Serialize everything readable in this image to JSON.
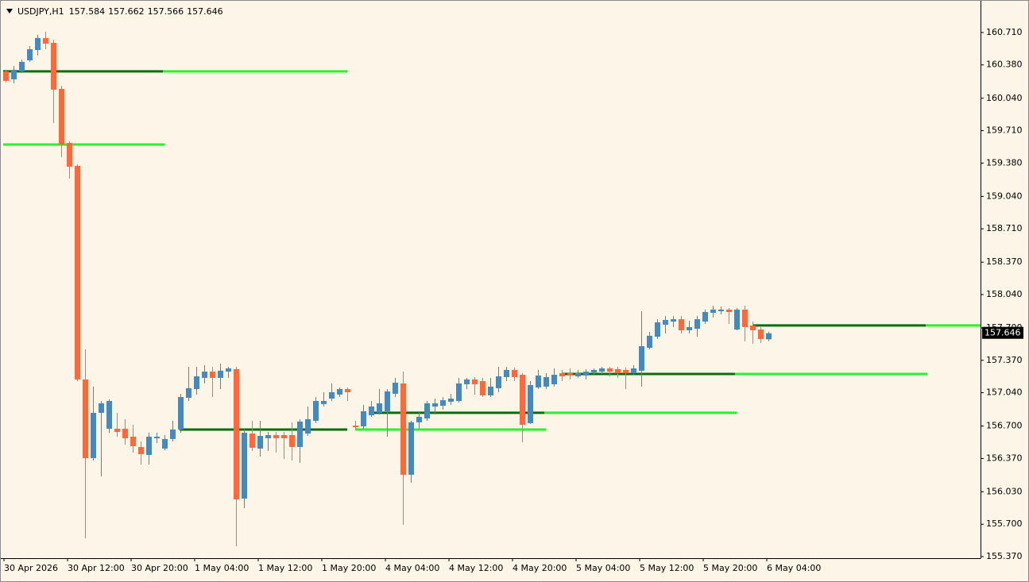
{
  "chart_data": {
    "type": "candlestick",
    "symbol": "USDJPY,H1",
    "categories": [
      "30 Apr 2026",
      null,
      null,
      null,
      null,
      null,
      null,
      null,
      "30 Apr 12:00",
      null,
      null,
      null,
      null,
      null,
      null,
      null,
      "30 Apr 20:00",
      null,
      null,
      null,
      null,
      null,
      null,
      null,
      "1 May 04:00",
      null,
      null,
      null,
      null,
      null,
      null,
      null,
      "1 May 12:00",
      null,
      null,
      null,
      null,
      null,
      null,
      null,
      "1 May 20:00",
      null,
      null,
      null,
      null,
      null,
      null,
      null,
      "4 May 04:00",
      null,
      null,
      null,
      null,
      null,
      null,
      null,
      "4 May 12:00",
      null,
      null,
      null,
      null,
      null,
      null,
      null,
      "4 May 20:00",
      null,
      null,
      null,
      null,
      null,
      null,
      null,
      "5 May 04:00",
      null,
      null,
      null,
      null,
      null,
      null,
      null,
      "5 May 12:00",
      null,
      null,
      null,
      null,
      null,
      null,
      null,
      "5 May 20:00",
      null,
      null,
      null,
      null,
      null,
      null,
      null,
      "6 May 04:00"
    ],
    "open": [
      160.314,
      160.233,
      160.314,
      160.427,
      160.532,
      160.654,
      160.605,
      160.136,
      159.586,
      159.351,
      157.175,
      156.373,
      156.835,
      156.673,
      156.673,
      156.673,
      156.592,
      156.487,
      156.406,
      156.576,
      156.471,
      156.568,
      156.665,
      156.988,
      157.077,
      157.191,
      157.255,
      157.191,
      157.255,
      157.28,
      155.961,
      156.624,
      156.471,
      156.576,
      156.608,
      156.608,
      156.608,
      156.487,
      156.624,
      156.754,
      156.924,
      156.98,
      157.021,
      157.077,
      156.705,
      156.697,
      156.81,
      156.835,
      156.851,
      157.029,
      157.134,
      156.204,
      156.738,
      156.778,
      156.899,
      156.907,
      156.948,
      156.956,
      157.126,
      157.175,
      157.158,
      157.013,
      157.086,
      157.199,
      157.272,
      157.223,
      156.73,
      157.094,
      157.102,
      157.126,
      157.239,
      157.239,
      157.207,
      157.215,
      157.247,
      157.255,
      157.288,
      157.28,
      157.272,
      157.239,
      157.264,
      157.498,
      157.611,
      157.733,
      157.765,
      157.789,
      157.676,
      157.692,
      157.765,
      157.854,
      157.87,
      157.887,
      157.684,
      157.887,
      157.725,
      157.684,
      157.584
    ],
    "high": [
      160.33,
      160.37,
      160.435,
      160.573,
      160.686,
      160.718,
      160.637,
      160.168,
      159.602,
      159.367,
      157.482,
      157.102,
      156.956,
      156.972,
      156.835,
      156.77,
      156.713,
      156.543,
      156.632,
      156.632,
      156.608,
      156.754,
      157.029,
      157.304,
      157.304,
      157.32,
      157.304,
      157.336,
      157.304,
      157.304,
      156.673,
      156.754,
      156.754,
      156.64,
      156.64,
      156.64,
      156.738,
      156.77,
      156.899,
      156.996,
      157.045,
      157.134,
      157.094,
      157.094,
      156.754,
      156.916,
      156.956,
      157.077,
      157.077,
      157.191,
      157.255,
      156.754,
      156.851,
      156.956,
      156.98,
      156.996,
      157.029,
      157.191,
      157.191,
      157.199,
      157.191,
      157.191,
      157.304,
      157.304,
      157.296,
      157.239,
      157.158,
      157.272,
      157.239,
      157.288,
      157.272,
      157.288,
      157.272,
      157.28,
      157.288,
      157.304,
      157.304,
      157.304,
      157.296,
      157.32,
      157.87,
      157.66,
      157.789,
      157.822,
      157.822,
      157.822,
      157.773,
      157.822,
      157.887,
      157.927,
      157.919,
      157.903,
      157.903,
      157.927,
      157.765,
      157.709,
      157.662
    ],
    "low": [
      160.201,
      160.192,
      160.298,
      160.411,
      160.476,
      160.54,
      159.788,
      159.44,
      159.222,
      157.158,
      155.556,
      156.349,
      156.187,
      156.632,
      156.592,
      156.511,
      156.43,
      156.309,
      156.309,
      156.527,
      156.454,
      156.543,
      156.632,
      156.956,
      157.021,
      157.134,
      156.996,
      157.077,
      157.191,
      155.475,
      155.864,
      156.446,
      156.39,
      156.446,
      156.43,
      156.365,
      156.349,
      156.325,
      156.6,
      156.73,
      156.899,
      156.956,
      156.996,
      156.956,
      156.657,
      156.673,
      156.794,
      156.818,
      156.592,
      156.996,
      155.694,
      156.123,
      156.673,
      156.754,
      156.818,
      156.867,
      156.916,
      156.94,
      157.077,
      157.021,
      156.996,
      156.996,
      157.045,
      157.158,
      157.158,
      156.535,
      156.721,
      157.077,
      157.077,
      157.102,
      157.158,
      157.175,
      157.191,
      157.175,
      157.223,
      157.231,
      157.207,
      157.191,
      157.077,
      157.223,
      157.102,
      157.482,
      157.587,
      157.644,
      157.709,
      157.644,
      157.644,
      157.611,
      157.741,
      157.806,
      157.838,
      157.741,
      157.676,
      157.563,
      157.539,
      157.547,
      157.566
    ],
    "close": [
      160.217,
      160.33,
      160.411,
      160.54,
      160.654,
      160.597,
      160.128,
      159.569,
      159.343,
      157.175,
      156.373,
      156.835,
      156.932,
      156.956,
      156.64,
      156.576,
      156.495,
      156.414,
      156.592,
      156.592,
      156.568,
      156.665,
      156.996,
      157.086,
      157.207,
      157.255,
      157.191,
      157.264,
      157.288,
      155.953,
      156.632,
      156.479,
      156.6,
      156.608,
      156.576,
      156.576,
      156.487,
      156.746,
      156.77,
      156.956,
      156.956,
      157.045,
      157.077,
      157.045,
      156.689,
      156.851,
      156.899,
      156.932,
      157.053,
      157.142,
      156.204,
      156.738,
      156.794,
      156.932,
      156.932,
      156.964,
      156.98,
      157.134,
      157.175,
      157.126,
      157.013,
      157.102,
      157.207,
      157.272,
      157.199,
      156.713,
      157.118,
      157.215,
      157.199,
      157.223,
      157.207,
      157.215,
      157.239,
      157.255,
      157.272,
      157.288,
      157.255,
      157.239,
      157.239,
      157.288,
      157.514,
      157.62,
      157.757,
      157.781,
      157.789,
      157.676,
      157.709,
      157.789,
      157.862,
      157.887,
      157.887,
      157.862,
      157.887,
      157.709,
      157.676,
      157.587,
      157.646
    ],
    "up_color": "#4a88b8",
    "down_color": "#fb6a3e",
    "ylim": [
      155.354,
      161.009
    ],
    "yticks": [
      {
        "value": 160.71,
        "label": "160.710"
      },
      {
        "value": 160.38,
        "label": "160.380"
      },
      {
        "value": 160.04,
        "label": "160.040"
      },
      {
        "value": 159.71,
        "label": "159.710"
      },
      {
        "value": 159.38,
        "label": "159.380"
      },
      {
        "value": 159.04,
        "label": "159.040"
      },
      {
        "value": 158.71,
        "label": "158.710"
      },
      {
        "value": 158.37,
        "label": "158.370"
      },
      {
        "value": 158.04,
        "label": "158.040"
      },
      {
        "value": 157.7,
        "label": "157.700"
      },
      {
        "value": 157.37,
        "label": "157.370"
      },
      {
        "value": 157.04,
        "label": "157.040"
      },
      {
        "value": 156.7,
        "label": "156.700"
      },
      {
        "value": 156.37,
        "label": "156.370"
      },
      {
        "value": 156.03,
        "label": "156.030"
      },
      {
        "value": 155.7,
        "label": "155.700"
      },
      {
        "value": 155.37,
        "label": "155.370"
      }
    ],
    "xlim": [
      -0.3,
      122.7
    ],
    "levels": [
      {
        "color": "#0b6d0b",
        "segments": [
          {
            "value": 160.314,
            "x": [
              -0.3,
              19.8
            ]
          },
          {
            "value": 156.665,
            "x": [
              21.9,
              43
            ]
          },
          {
            "value": 156.835,
            "x": [
              46,
              67.8
            ]
          },
          {
            "value": 157.231,
            "x": [
              70,
              91.8
            ]
          },
          {
            "value": 157.725,
            "x": [
              94,
              115.8
            ]
          }
        ]
      },
      {
        "color": "#2cf02c",
        "segments": [
          {
            "value": 160.314,
            "x": [
              19.8,
              43
            ]
          },
          {
            "value": 159.569,
            "x": [
              -0.3,
              20
            ]
          },
          {
            "value": 156.665,
            "x": [
              44,
              68
            ]
          },
          {
            "value": 156.835,
            "x": [
              67.8,
              92
            ]
          },
          {
            "value": 157.231,
            "x": [
              91.8,
              116
            ]
          },
          {
            "value": 157.725,
            "x": [
              115.8,
              122.7
            ]
          }
        ]
      }
    ]
  }
}
